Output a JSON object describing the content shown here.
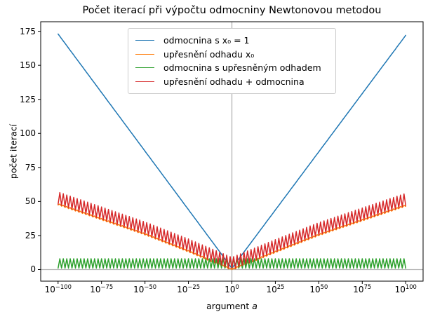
{
  "chart_data": {
    "type": "line",
    "title": "Počet iterací při výpočtu odmocniny Newtonovou metodou",
    "xlabel": {
      "prefix": "argument ",
      "var": "a"
    },
    "ylabel": "počet iterací",
    "x_scale": "log",
    "xlim_exponents": [
      -110,
      110
    ],
    "ylim": [
      -8.5,
      182
    ],
    "grid": false,
    "x_ticks": [
      {
        "log10": -100,
        "base": "10",
        "exp": "−100"
      },
      {
        "log10": -75,
        "base": "10",
        "exp": "−75"
      },
      {
        "log10": -50,
        "base": "10",
        "exp": "−50"
      },
      {
        "log10": -25,
        "base": "10",
        "exp": "−25"
      },
      {
        "log10": 0,
        "base": "10",
        "exp": "0"
      },
      {
        "log10": 25,
        "base": "10",
        "exp": "25"
      },
      {
        "log10": 50,
        "base": "10",
        "exp": "50"
      },
      {
        "log10": 75,
        "base": "10",
        "exp": "75"
      },
      {
        "log10": 100,
        "base": "10",
        "exp": "100"
      }
    ],
    "y_ticks": [
      0,
      25,
      50,
      75,
      100,
      125,
      150,
      175
    ],
    "guides": {
      "vline_log10x": 0,
      "hline_y": 0,
      "color": "#b3b3b3"
    },
    "legend": {
      "position": "upper center"
    },
    "oscillation_period_decades": 2,
    "series": [
      {
        "name": "odmocnina s x₀ = 1",
        "color": "#1f77b4",
        "envelope_points": [
          [
            -100,
            173
          ],
          [
            0,
            1
          ],
          [
            100,
            172
          ]
        ],
        "osc_amplitude": 0,
        "clamp_min": 0
      },
      {
        "name": "upřesnění odhadu x₀",
        "color": "#ff7f0e",
        "envelope_points": [
          [
            -100,
            48
          ],
          [
            -50,
            26
          ],
          [
            -25,
            13.5
          ],
          [
            0,
            0
          ],
          [
            25,
            13
          ],
          [
            50,
            25.5
          ],
          [
            100,
            47
          ]
        ],
        "osc_amplitude": 0.6,
        "clamp_min": 0
      },
      {
        "name": "odmocnina s upřesněným odhadem",
        "color": "#2ca02c",
        "envelope_points": [
          [
            -100,
            4.5
          ],
          [
            100,
            4.5
          ]
        ],
        "osc_amplitude": 3.5,
        "clamp_min": 0
      },
      {
        "name": "upřesnění odhadu + odmocnina",
        "color": "#d62728",
        "envelope_points": [
          [
            -100,
            52.5
          ],
          [
            -50,
            30.5
          ],
          [
            -25,
            18
          ],
          [
            0,
            4.5
          ],
          [
            25,
            17.5
          ],
          [
            50,
            30
          ],
          [
            100,
            51.5
          ]
        ],
        "osc_amplitude": 4.5,
        "clamp_min": 1
      }
    ]
  }
}
